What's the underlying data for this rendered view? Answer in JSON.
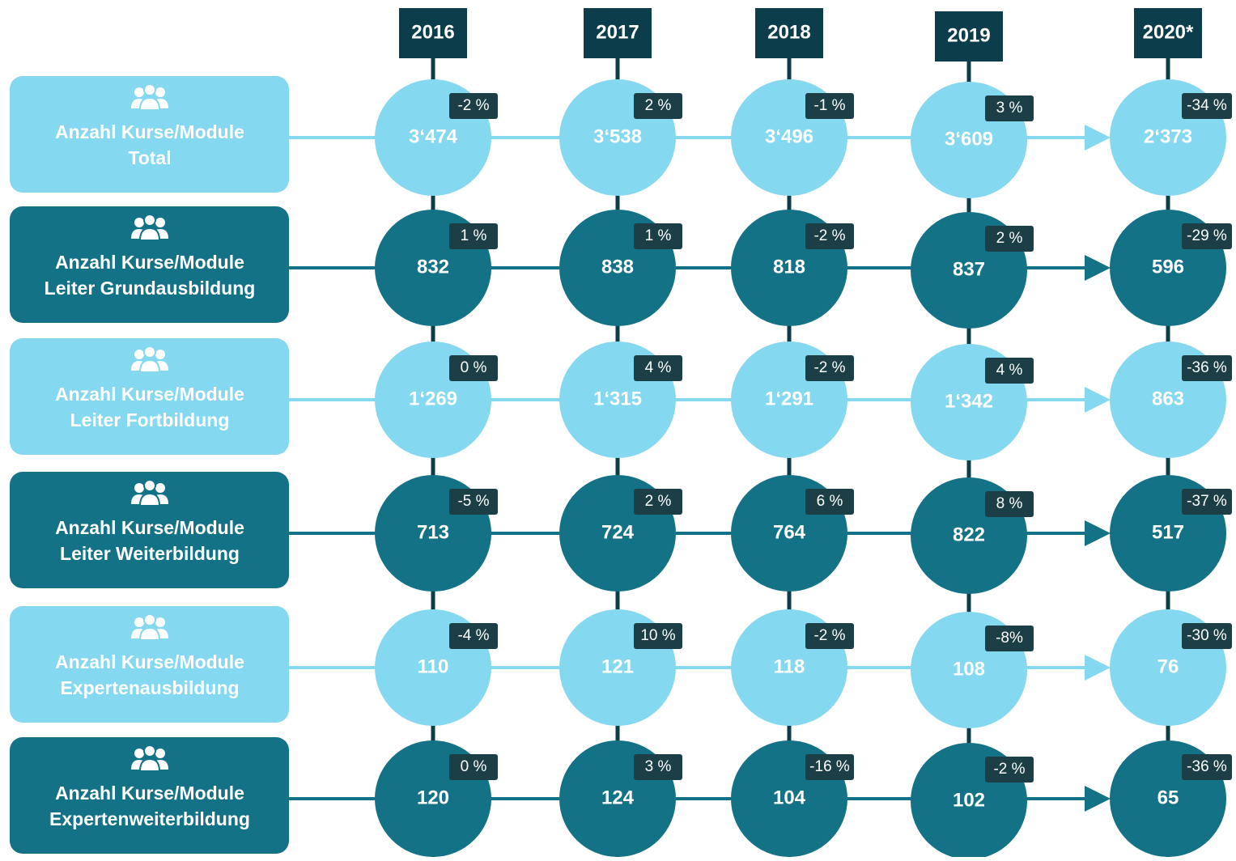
{
  "columns": [
    "2016",
    "2017",
    "2018",
    "2019",
    "2020*"
  ],
  "rows": [
    {
      "label": [
        "Anzahl Kurse/Module",
        "Total"
      ],
      "values": [
        "3‘474",
        "3‘538",
        "3‘496",
        "3‘609",
        "2‘373"
      ],
      "changes": [
        "-2 %",
        "2 %",
        "-1 %",
        "3 %",
        "-34 %"
      ]
    },
    {
      "label": [
        "Anzahl Kurse/Module",
        "Leiter Grundausbildung"
      ],
      "values": [
        "832",
        "838",
        "818",
        "837",
        "596"
      ],
      "changes": [
        "1 %",
        "1 %",
        "-2 %",
        "2 %",
        "-29 %"
      ]
    },
    {
      "label": [
        "Anzahl Kurse/Module",
        "Leiter Fortbildung"
      ],
      "values": [
        "1‘269",
        "1‘315",
        "1‘291",
        "1‘342",
        "863"
      ],
      "changes": [
        "0 %",
        "4 %",
        "-2 %",
        "4 %",
        "-36 %"
      ]
    },
    {
      "label": [
        "Anzahl Kurse/Module",
        "Leiter Weiterbildung"
      ],
      "values": [
        "713",
        "724",
        "764",
        "822",
        "517"
      ],
      "changes": [
        "-5 %",
        "2 %",
        "6 %",
        "8 %",
        "-37 %"
      ]
    },
    {
      "label": [
        "Anzahl Kurse/Module",
        "Expertenausbildung"
      ],
      "values": [
        "110",
        "121",
        "118",
        "108",
        "76"
      ],
      "changes": [
        "-4 %",
        "10 %",
        "-2 %",
        "-8%",
        "-30 %"
      ]
    },
    {
      "label": [
        "Anzahl Kurse/Module",
        "Expertenweiterbildung"
      ],
      "values": [
        "120",
        "124",
        "104",
        "102",
        "65"
      ],
      "changes": [
        "0 %",
        "3 %",
        "-16 %",
        "-2 %",
        "-36 %"
      ]
    }
  ]
}
